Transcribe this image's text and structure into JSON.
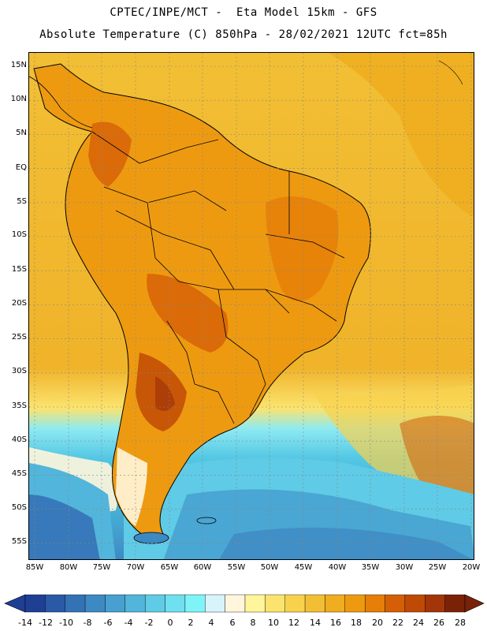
{
  "header": {
    "line1": "CPTEC/INPE/MCT -  Eta Model 15km - GFS",
    "line2": "Absolute Temperature (C) 850hPa - 28/02/2021 12UTC fct=85h"
  },
  "map": {
    "lat_labels": [
      "15N",
      "10N",
      "5N",
      "EQ",
      "5S",
      "10S",
      "15S",
      "20S",
      "25S",
      "30S",
      "35S",
      "40S",
      "45S",
      "50S",
      "55S"
    ],
    "lon_labels": [
      "85W",
      "80W",
      "75W",
      "70W",
      "65W",
      "60W",
      "55W",
      "50W",
      "45W",
      "40W",
      "35W",
      "30W",
      "25W",
      "20W"
    ],
    "grid": "on"
  },
  "colorbar": {
    "labels": [
      "-14",
      "-12",
      "-10",
      "-8",
      "-6",
      "-4",
      "-2",
      "0",
      "2",
      "4",
      "6",
      "8",
      "10",
      "12",
      "14",
      "16",
      "18",
      "20",
      "22",
      "24",
      "26",
      "28"
    ],
    "colors": [
      "#1f3f95",
      "#2a5aa6",
      "#3472b6",
      "#3d89c3",
      "#47a0cf",
      "#52b5db",
      "#5fcbe6",
      "#6fe0ef",
      "#7ff4f8",
      "#d8f4fb",
      "#fff6dc",
      "#fff59a",
      "#fbe46e",
      "#f8d24d",
      "#f2bf34",
      "#efad1f",
      "#ee9a10",
      "#e57f08",
      "#d45f06",
      "#bf4a06",
      "#a33508",
      "#7a2208"
    ]
  }
}
